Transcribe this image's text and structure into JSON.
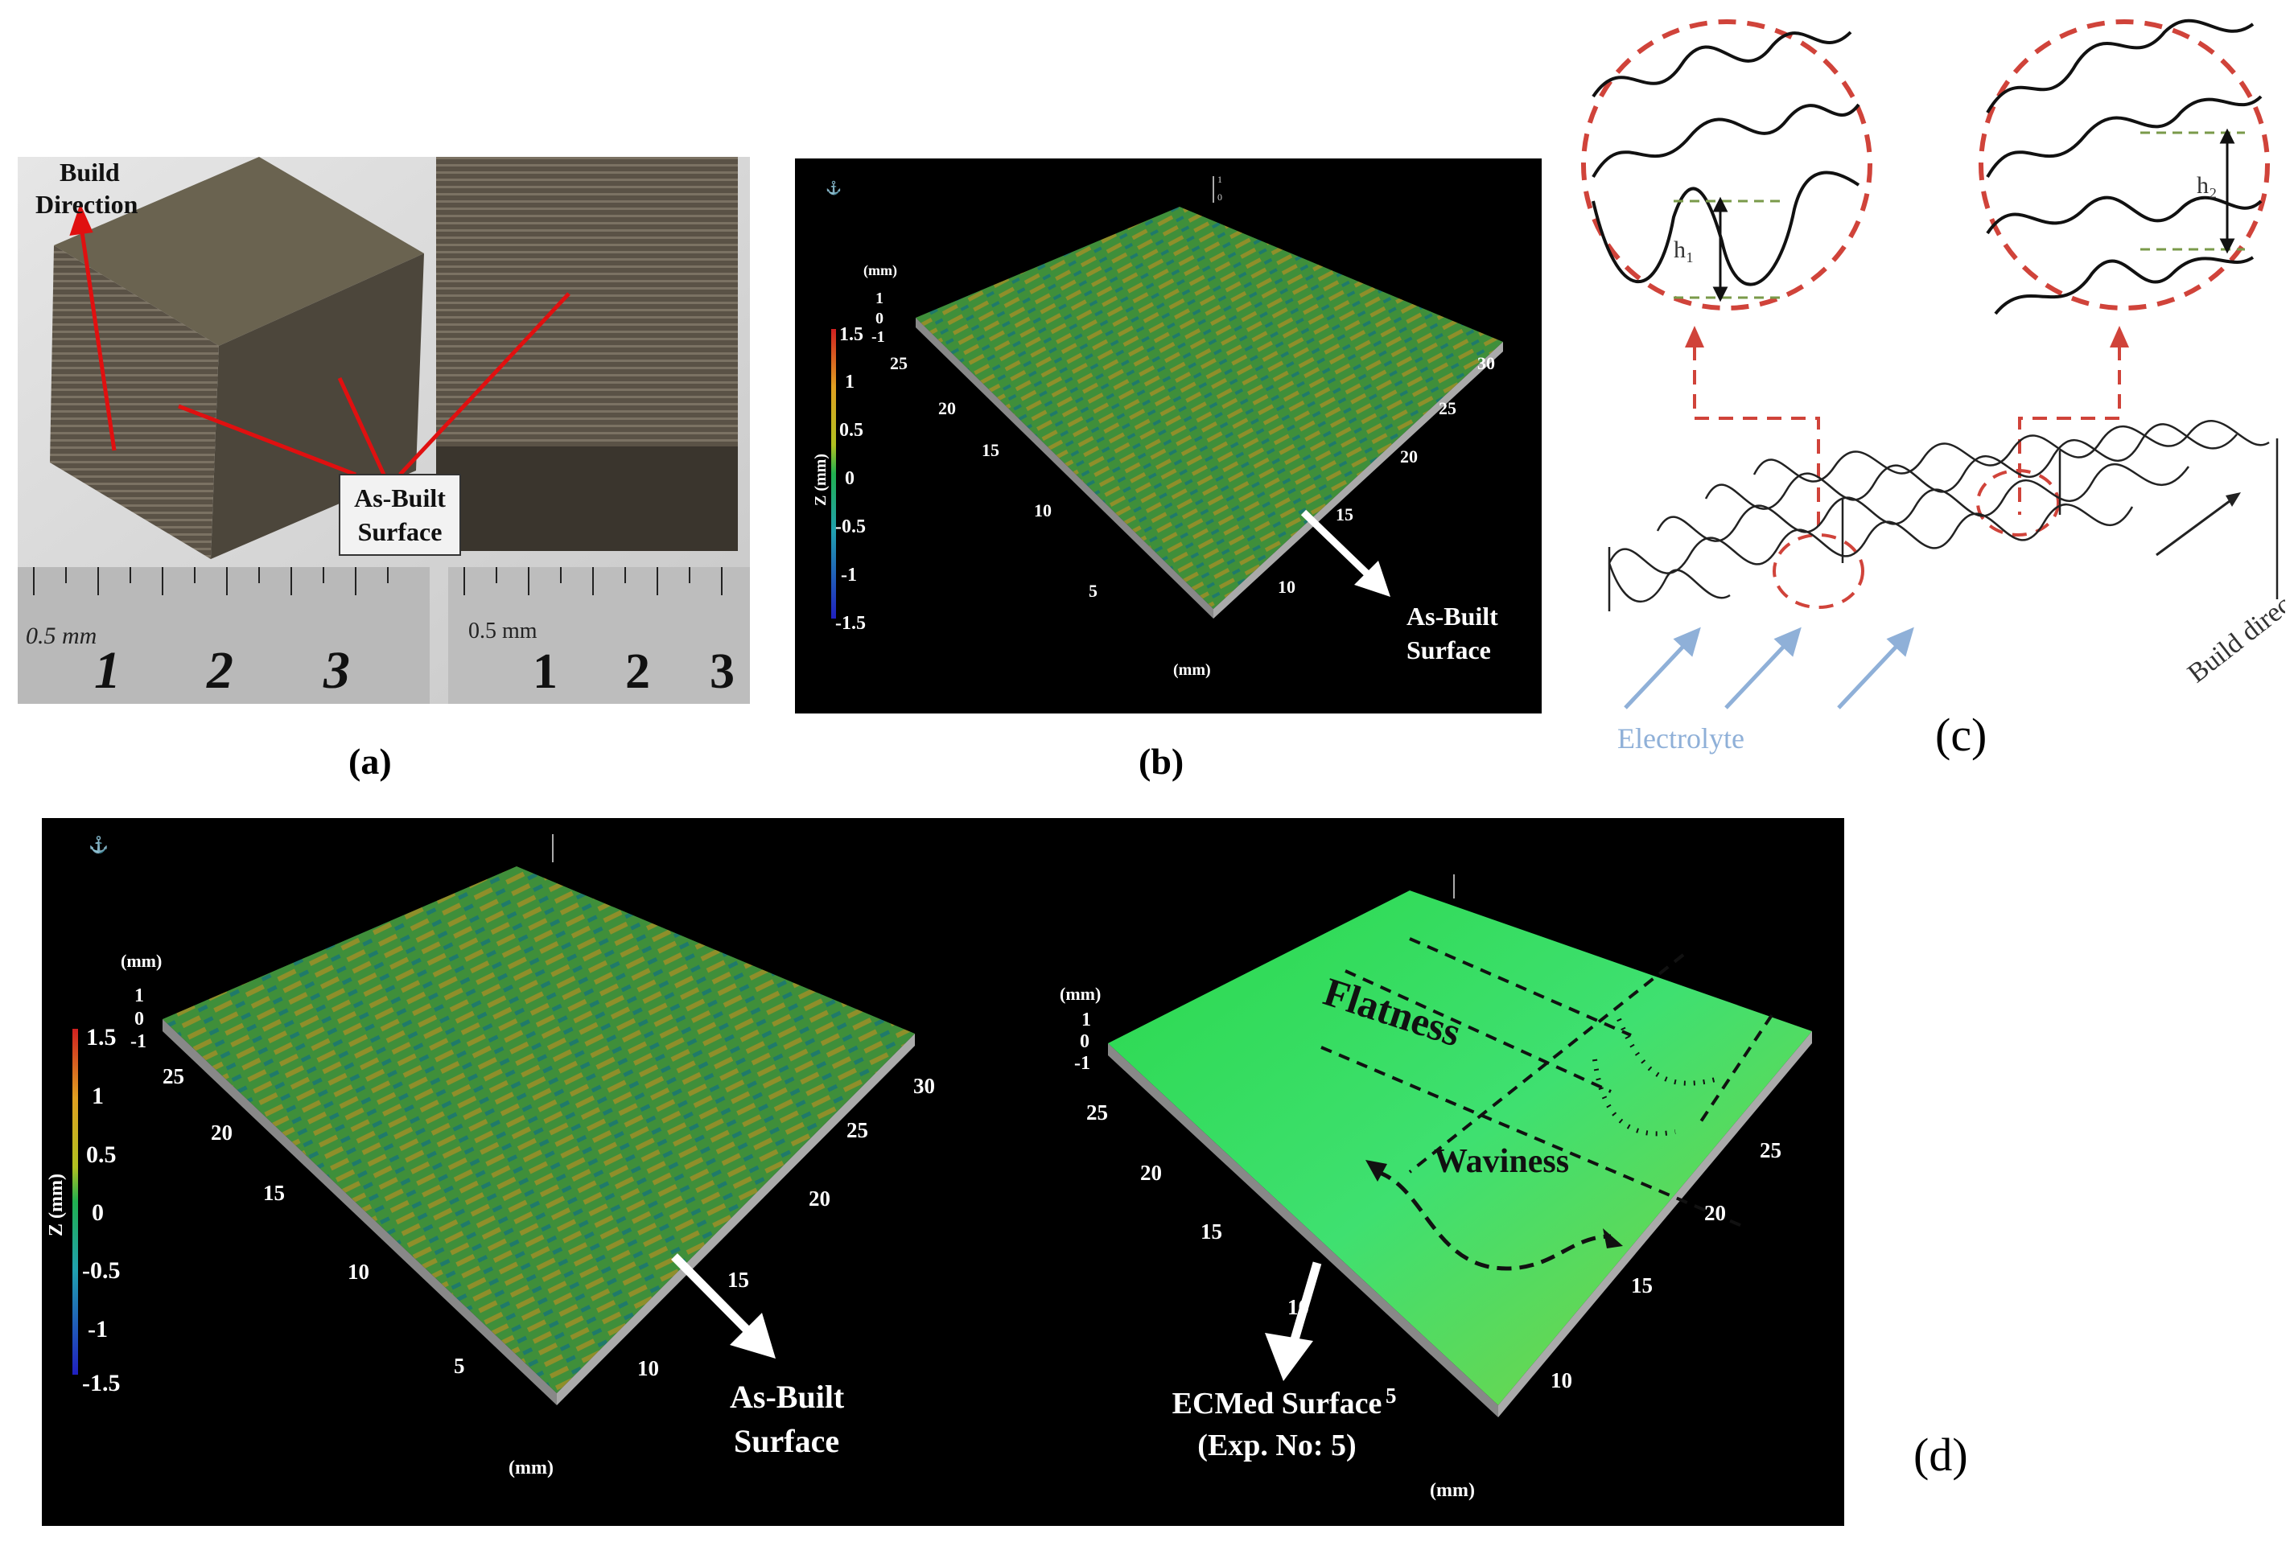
{
  "panel_a": {
    "label": "(a)",
    "build_direction_line1": "Build",
    "build_direction_line2": "Direction",
    "as_built_line1": "As-Built",
    "as_built_line2": "Surface",
    "ruler_left": {
      "unit": "0.5 mm",
      "numbers": [
        "1",
        "2",
        "3"
      ]
    },
    "ruler_right": {
      "unit": "0.5 mm",
      "numbers": [
        "1",
        "2",
        "3"
      ]
    }
  },
  "panel_b": {
    "label": "(b)",
    "z_unit": "(mm)",
    "z_ticks": [
      "1",
      "0",
      "-1"
    ],
    "colorbar_title": "Z (mm)",
    "colorbar_ticks": [
      "1.5",
      "1",
      "0.5",
      "0",
      "-0.5",
      "-1",
      "-1.5"
    ],
    "left_axis_ticks": [
      "25",
      "20",
      "15",
      "10",
      "5"
    ],
    "right_axis_ticks": [
      "10",
      "15",
      "20",
      "25",
      "30"
    ],
    "xy_unit": "(mm)",
    "arrow_line1": "As-Built",
    "arrow_line2": "Surface",
    "axis_tag_top": "1",
    "axis_tag_bottom": "0"
  },
  "panel_c": {
    "label": "(c)",
    "h1": "h₁",
    "h2": "h₂",
    "build_direction": "Build direction",
    "electrolyte": "Electrolyte"
  },
  "panel_d": {
    "label": "(d)",
    "left": {
      "z_unit": "(mm)",
      "z_ticks": [
        "1",
        "0",
        "-1"
      ],
      "colorbar_title": "Z (mm)",
      "colorbar_ticks": [
        "1.5",
        "1",
        "0.5",
        "0",
        "-0.5",
        "-1",
        "-1.5"
      ],
      "left_axis_ticks": [
        "25",
        "20",
        "15",
        "10",
        "5"
      ],
      "right_axis_ticks": [
        "10",
        "15",
        "20",
        "25",
        "30"
      ],
      "xy_unit": "(mm)",
      "arrow_line1": "As-Built",
      "arrow_line2": "Surface"
    },
    "right": {
      "z_unit": "(mm)",
      "z_ticks": [
        "1",
        "0",
        "-1"
      ],
      "left_axis_ticks": [
        "25",
        "20",
        "15",
        "10",
        "5"
      ],
      "right_axis_ticks": [
        "10",
        "15",
        "20",
        "25"
      ],
      "xy_unit": "(mm)",
      "flatness": "Flatness",
      "waviness": "Waviness",
      "arrow_line1": "ECMed Surface",
      "arrow_line2": "(Exp. No: 5)"
    }
  },
  "colors": {
    "as_built_green": "#3f8f3a",
    "as_built_olive": "#8f8f2a",
    "ecm_green": "#35d84a",
    "dashed_red": "#d0433a",
    "electrolyte_blue": "#8fb0d8",
    "annotation_red": "#e01010"
  }
}
